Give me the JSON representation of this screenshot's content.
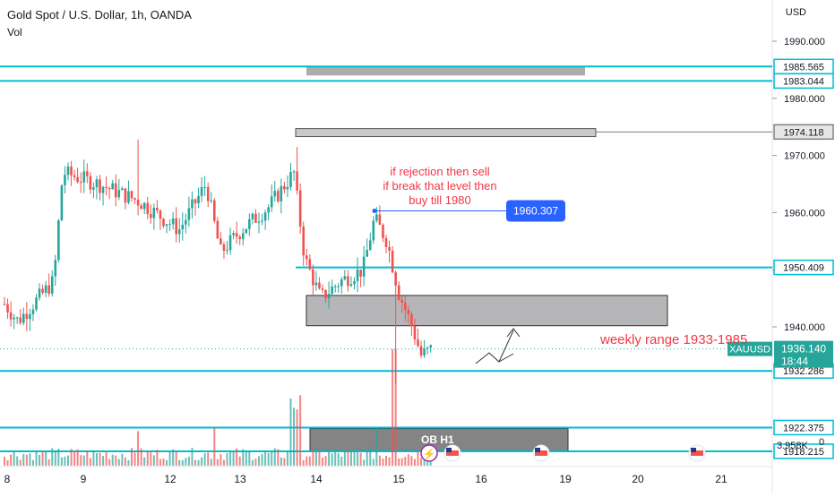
{
  "chart_data": {
    "type": "candlestick",
    "title": "Gold Spot / U.S. Dollar, 1h, OANDA",
    "volume_label": "Vol",
    "currency": "USD",
    "price_axis": {
      "ticks": [
        1990,
        1980,
        1970,
        1960,
        1950,
        1940
      ],
      "tick_labels": [
        "1990.000",
        "1980.000",
        "1970.000",
        "1960.000",
        "1950.000",
        "1940.000"
      ],
      "range": [
        1913,
        1997
      ]
    },
    "time_axis": {
      "labels": [
        "8",
        "9",
        "12",
        "13",
        "14",
        "15",
        "16",
        "19",
        "20",
        "21"
      ]
    },
    "horizontal_levels": [
      {
        "value": 1985.565,
        "label": "1985.565",
        "color": "#00bcd4"
      },
      {
        "value": 1983.044,
        "label": "1983.044",
        "color": "#00bcd4"
      },
      {
        "value": 1974.118,
        "label": "1974.118",
        "color": "#808080"
      },
      {
        "value": 1950.409,
        "label": "1950.409",
        "color": "#00bcd4"
      },
      {
        "value": 1932.286,
        "label": "1932.286",
        "color": "#00bcd4"
      },
      {
        "value": 1922.375,
        "label": "1922.375",
        "color": "#00bcd4"
      },
      {
        "value": 1918.215,
        "label": "1918.215",
        "color": "#00bcd4"
      }
    ],
    "current_price": {
      "symbol": "XAUUSD",
      "value": "1936.140",
      "countdown": "18:44"
    },
    "volume_scale_label": "3.958K",
    "volume_zero_label": "0",
    "marker": {
      "value": "1960.307",
      "price": 1960.307
    },
    "annotations": {
      "note_lines": [
        "if rejection then sell",
        "if break that level then",
        "buy till 1980"
      ],
      "weekly_range": "weekly range 1933-1985",
      "ob_label": "OB H1"
    },
    "zones": [
      {
        "name": "supply-zone-top",
        "from": 1984.0,
        "to": 1985.5
      },
      {
        "name": "resistance-zone",
        "from": 1973.3,
        "to": 1974.7
      },
      {
        "name": "demand-zone",
        "from": 1940.2,
        "to": 1945.5
      },
      {
        "name": "ob-h1-zone",
        "from": 1918.3,
        "to": 1922.2
      }
    ],
    "candles_ohlc_sample": {
      "start_price": 1944,
      "end_price": 1936.14,
      "high": 1972.8,
      "low": 1933.5
    },
    "colors": {
      "bull": "#26a69a",
      "bear": "#ef5350",
      "level": "#00bcd4",
      "marker": "#2962ff",
      "note": "#f23645"
    }
  }
}
